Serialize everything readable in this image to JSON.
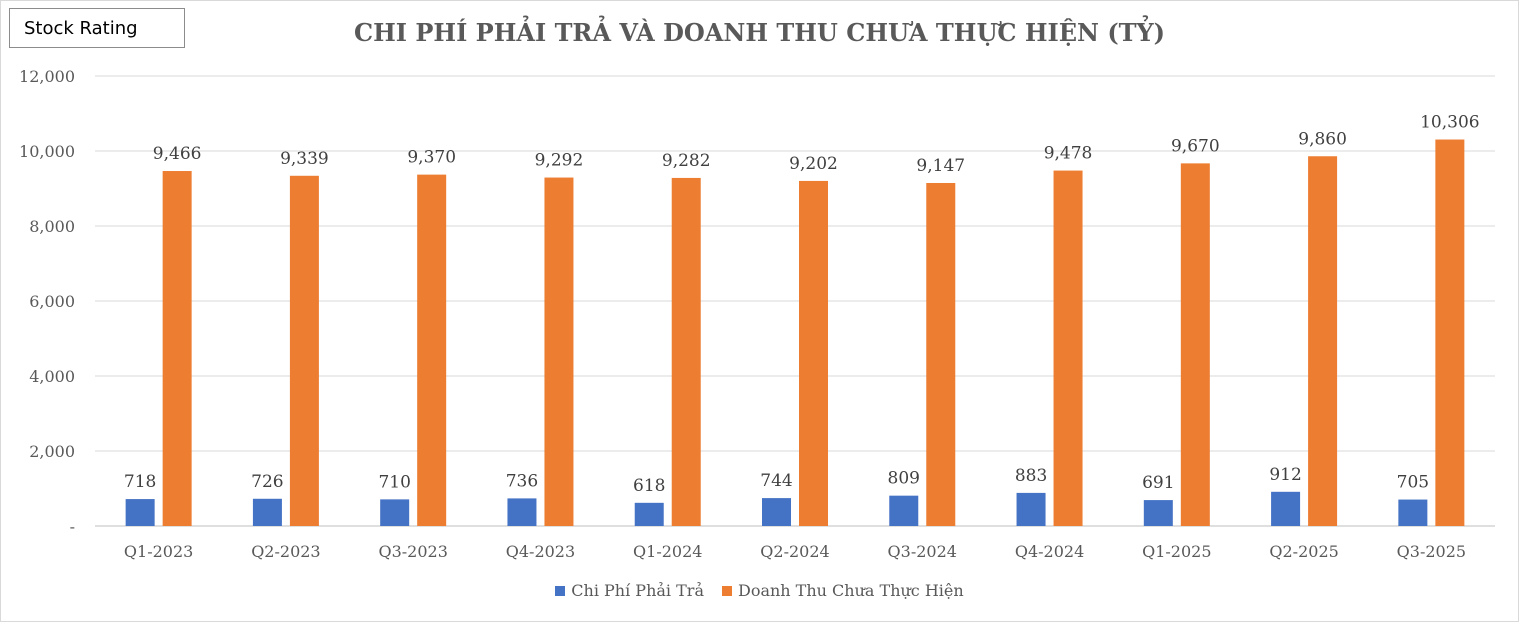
{
  "badge": {
    "label": "Stock Rating"
  },
  "chart_data": {
    "type": "bar",
    "title": "CHI PHÍ PHẢI TRẢ VÀ DOANH THU CHƯA THỰC HIỆN (TỶ)",
    "categories": [
      "Q1-2023",
      "Q2-2023",
      "Q3-2023",
      "Q4-2023",
      "Q1-2024",
      "Q2-2024",
      "Q3-2024",
      "Q4-2024",
      "Q1-2025",
      "Q2-2025",
      "Q3-2025"
    ],
    "series": [
      {
        "name": "Chi Phí Phải Trả",
        "color": "#4472c4",
        "values": [
          718,
          726,
          710,
          736,
          618,
          744,
          809,
          883,
          691,
          912,
          705
        ],
        "labels": [
          "718",
          "726",
          "710",
          "736",
          "618",
          "744",
          "809",
          "883",
          "691",
          "912",
          "705"
        ]
      },
      {
        "name": "Doanh Thu Chưa Thực Hiện",
        "color": "#ed7d31",
        "values": [
          9466,
          9339,
          9370,
          9292,
          9282,
          9202,
          9147,
          9478,
          9670,
          9860,
          10306
        ],
        "labels": [
          "9,466",
          "9,339",
          "9,370",
          "9,292",
          "9,282",
          "9,202",
          "9,147",
          "9,478",
          "9,670",
          "9,860",
          "10,306"
        ]
      }
    ],
    "ylim": [
      0,
      12000
    ],
    "yticks": [
      {
        "value": 0,
        "label": "-"
      },
      {
        "value": 2000,
        "label": "2,000"
      },
      {
        "value": 4000,
        "label": "4,000"
      },
      {
        "value": 6000,
        "label": "6,000"
      },
      {
        "value": 8000,
        "label": "8,000"
      },
      {
        "value": 10000,
        "label": "10,000"
      },
      {
        "value": 12000,
        "label": "12,000"
      }
    ],
    "grid": true,
    "legend_position": "bottom"
  }
}
